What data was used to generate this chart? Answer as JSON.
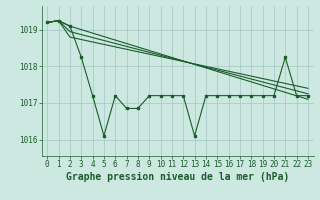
{
  "background_color": "#cce8e0",
  "grid_color": "#aacccc",
  "line_color": "#1a5c2a",
  "xlabel": "Graphe pression niveau de la mer (hPa)",
  "xlabel_fontsize": 7,
  "tick_fontsize": 5.5,
  "yticks": [
    1016,
    1017,
    1018,
    1019
  ],
  "ylim": [
    1015.55,
    1019.65
  ],
  "xlim": [
    -0.5,
    23.5
  ],
  "xticks": [
    0,
    1,
    2,
    3,
    4,
    5,
    6,
    7,
    8,
    9,
    10,
    11,
    12,
    13,
    14,
    15,
    16,
    17,
    18,
    19,
    20,
    21,
    22,
    23
  ],
  "series1_x": [
    0,
    1,
    2,
    3,
    4,
    5,
    6,
    7,
    8,
    9,
    10,
    11,
    12,
    13,
    14,
    15,
    16,
    17,
    18,
    19,
    20,
    21,
    22,
    23
  ],
  "series1_y": [
    1019.2,
    1019.25,
    1019.1,
    1018.25,
    1017.2,
    1016.1,
    1017.2,
    1016.85,
    1016.85,
    1017.2,
    1017.2,
    1017.2,
    1017.2,
    1016.1,
    1017.2,
    1017.2,
    1017.2,
    1017.2,
    1017.2,
    1017.2,
    1017.2,
    1018.25,
    1017.2,
    1017.2
  ],
  "series2_x": [
    0,
    1,
    2,
    23
  ],
  "series2_y": [
    1019.2,
    1019.25,
    1019.1,
    1017.1
  ],
  "series3_x": [
    0,
    1,
    2,
    23
  ],
  "series3_y": [
    1019.2,
    1019.25,
    1018.95,
    1017.25
  ],
  "series4_x": [
    0,
    1,
    2,
    23
  ],
  "series4_y": [
    1019.2,
    1019.25,
    1018.8,
    1017.4
  ],
  "figwidth": 3.2,
  "figheight": 2.0,
  "dpi": 100
}
